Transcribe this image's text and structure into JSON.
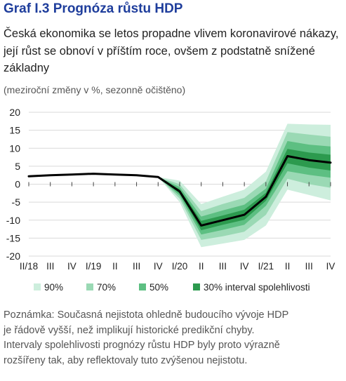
{
  "header": {
    "title": "Graf I.3 Prognóza růstu HDP",
    "subtitle": "Česká ekonomika se letos propadne vlivem koronavirové nákazy, její růst se obnoví v příštím roce, ovšem z podstatně snížené základny",
    "units": "(meziroční změny v %, sezonně očištěno)"
  },
  "chart_data": {
    "type": "line",
    "categories": [
      "II/18",
      "III",
      "IV",
      "I/19",
      "II",
      "III",
      "IV",
      "I/20",
      "II",
      "III",
      "IV",
      "I/21",
      "II",
      "III",
      "IV"
    ],
    "ylim": [
      -20,
      20
    ],
    "yticks": [
      -20,
      -15,
      -10,
      -5,
      0,
      5,
      10,
      15,
      20
    ],
    "grid": true,
    "series": [
      {
        "values": [
          2.2,
          2.5,
          2.7,
          2.9,
          2.7,
          2.5,
          2.0,
          -2.0,
          -11.5,
          -10.0,
          -8.5,
          -3.5,
          7.8,
          6.7,
          6.0
        ]
      }
    ],
    "fan_start_index": 6,
    "fan_bands": [
      {
        "name": "90%",
        "color": "#cdeedd",
        "upper": [
          2.0,
          1.0,
          -5.5,
          -3.5,
          -1.5,
          3.5,
          16.8,
          16.6,
          16.5
        ],
        "lower": [
          2.0,
          -5.0,
          -17.5,
          -16.5,
          -15.5,
          -11.5,
          -1.5,
          -3.0,
          -4.5
        ]
      },
      {
        "name": "70%",
        "color": "#9ad9b4",
        "upper": [
          2.0,
          0.0,
          -7.5,
          -5.5,
          -3.8,
          0.8,
          14.5,
          13.8,
          13.2
        ],
        "lower": [
          2.0,
          -4.0,
          -15.5,
          -14.5,
          -13.2,
          -8.5,
          1.5,
          0.0,
          -1.0
        ]
      },
      {
        "name": "50%",
        "color": "#5dbf82",
        "upper": [
          2.0,
          -0.8,
          -9.0,
          -7.3,
          -5.7,
          -1.2,
          12.0,
          11.0,
          10.5
        ],
        "lower": [
          2.0,
          -3.2,
          -14.0,
          -12.7,
          -11.3,
          -6.0,
          3.6,
          2.6,
          1.8
        ]
      },
      {
        "name": "30% interval spolehlivosti",
        "color": "#2c9a4e",
        "upper": [
          2.0,
          -1.4,
          -10.2,
          -8.7,
          -7.1,
          -2.4,
          9.8,
          8.8,
          8.2
        ],
        "lower": [
          2.0,
          -2.6,
          -12.8,
          -11.3,
          -9.9,
          -4.6,
          5.8,
          4.6,
          3.8
        ]
      }
    ],
    "legend": {
      "placement": "bottom",
      "items": [
        "90%",
        "70%",
        "50%",
        "30% interval spolehlivosti"
      ]
    }
  },
  "note": {
    "lines": [
      "Poznámka: Současná nejistota ohledně budoucího vývoje HDP",
      "je řádově vyšší, než implikují historické predikční chyby.",
      "Intervaly spolehlivosti prognózy růstu HDP byly proto výrazně",
      "rozšířeny tak, aby reflektovaly tuto zvýšenou nejistotu."
    ]
  },
  "colors": {
    "title": "#1f3e9c",
    "line": "#000000",
    "grid": "#d9d9d9"
  }
}
